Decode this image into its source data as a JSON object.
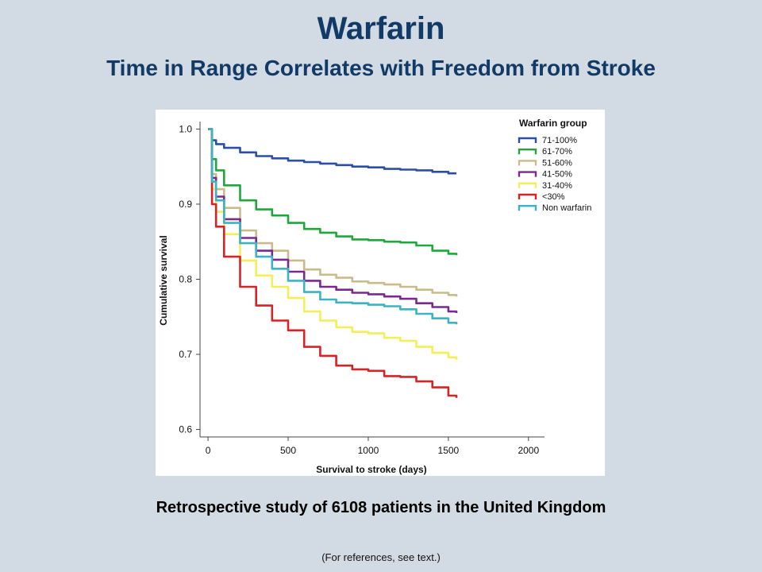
{
  "slide": {
    "title": "Warfarin",
    "subtitle": "Time in Range Correlates with Freedom from Stroke",
    "caption": "Retrospective study of 6108 patients in  the United Kingdom",
    "footnote": "(For references, see text.)"
  },
  "chart_data": {
    "type": "line",
    "title": "",
    "xlabel": "Survival to stroke (days)",
    "ylabel": "Cumulative survival",
    "xlim": [
      -50,
      2100
    ],
    "ylim": [
      0.59,
      1.01
    ],
    "xticks": [
      0,
      500,
      1000,
      1500,
      2000
    ],
    "yticks": [
      0.6,
      0.7,
      0.8,
      0.9,
      1.0
    ],
    "ytick_labels": [
      "0.6",
      "0.7",
      "0.8",
      "0.9",
      "1.0"
    ],
    "grid": false,
    "legend_title": "Warfarin group",
    "legend_position": "top-right",
    "series": [
      {
        "name": "71-100%",
        "color": "#2c4ea8",
        "x": [
          0,
          25,
          50,
          100,
          200,
          300,
          400,
          500,
          600,
          700,
          800,
          900,
          1000,
          1100,
          1200,
          1300,
          1400,
          1500,
          1550
        ],
        "y": [
          1.0,
          0.985,
          0.98,
          0.975,
          0.969,
          0.964,
          0.961,
          0.958,
          0.956,
          0.954,
          0.952,
          0.95,
          0.949,
          0.947,
          0.946,
          0.945,
          0.943,
          0.941,
          0.941
        ]
      },
      {
        "name": "61-70%",
        "color": "#1ea83c",
        "x": [
          0,
          25,
          50,
          100,
          200,
          300,
          400,
          500,
          600,
          700,
          800,
          900,
          1000,
          1100,
          1200,
          1300,
          1400,
          1500,
          1550
        ],
        "y": [
          1.0,
          0.96,
          0.945,
          0.925,
          0.905,
          0.893,
          0.885,
          0.875,
          0.867,
          0.862,
          0.857,
          0.853,
          0.852,
          0.85,
          0.849,
          0.845,
          0.838,
          0.834,
          0.832
        ]
      },
      {
        "name": "51-60%",
        "color": "#c9bb8a",
        "x": [
          0,
          25,
          50,
          100,
          200,
          300,
          400,
          500,
          600,
          700,
          800,
          900,
          1000,
          1100,
          1200,
          1300,
          1400,
          1500,
          1550
        ],
        "y": [
          1.0,
          0.94,
          0.92,
          0.895,
          0.865,
          0.848,
          0.838,
          0.825,
          0.813,
          0.806,
          0.802,
          0.797,
          0.795,
          0.793,
          0.79,
          0.786,
          0.782,
          0.779,
          0.777
        ]
      },
      {
        "name": "41-50%",
        "color": "#7a2a8e",
        "x": [
          0,
          25,
          50,
          100,
          200,
          300,
          400,
          500,
          600,
          700,
          800,
          900,
          1000,
          1100,
          1200,
          1300,
          1400,
          1500,
          1550
        ],
        "y": [
          1.0,
          0.935,
          0.91,
          0.88,
          0.855,
          0.838,
          0.826,
          0.81,
          0.798,
          0.79,
          0.786,
          0.782,
          0.78,
          0.777,
          0.774,
          0.768,
          0.763,
          0.757,
          0.755
        ]
      },
      {
        "name": "31-40%",
        "color": "#f4ee58",
        "x": [
          0,
          25,
          50,
          100,
          200,
          300,
          400,
          500,
          600,
          700,
          800,
          900,
          1000,
          1100,
          1200,
          1300,
          1400,
          1500,
          1550
        ],
        "y": [
          1.0,
          0.92,
          0.89,
          0.86,
          0.825,
          0.805,
          0.79,
          0.775,
          0.757,
          0.745,
          0.736,
          0.73,
          0.728,
          0.722,
          0.718,
          0.71,
          0.702,
          0.696,
          0.693
        ]
      },
      {
        "name": "<30%",
        "color": "#d62426",
        "x": [
          0,
          25,
          50,
          100,
          200,
          300,
          400,
          500,
          600,
          700,
          800,
          900,
          1000,
          1100,
          1200,
          1300,
          1400,
          1500,
          1550
        ],
        "y": [
          1.0,
          0.9,
          0.87,
          0.83,
          0.79,
          0.765,
          0.745,
          0.732,
          0.71,
          0.698,
          0.685,
          0.68,
          0.678,
          0.671,
          0.67,
          0.664,
          0.656,
          0.645,
          0.642
        ]
      },
      {
        "name": "Non warfarin",
        "color": "#3ab3c4",
        "x": [
          0,
          25,
          50,
          100,
          200,
          300,
          400,
          500,
          600,
          700,
          800,
          900,
          1000,
          1100,
          1200,
          1300,
          1400,
          1500,
          1550
        ],
        "y": [
          1.0,
          0.93,
          0.905,
          0.875,
          0.848,
          0.83,
          0.814,
          0.798,
          0.783,
          0.773,
          0.769,
          0.768,
          0.766,
          0.764,
          0.76,
          0.754,
          0.748,
          0.742,
          0.74
        ]
      }
    ]
  }
}
